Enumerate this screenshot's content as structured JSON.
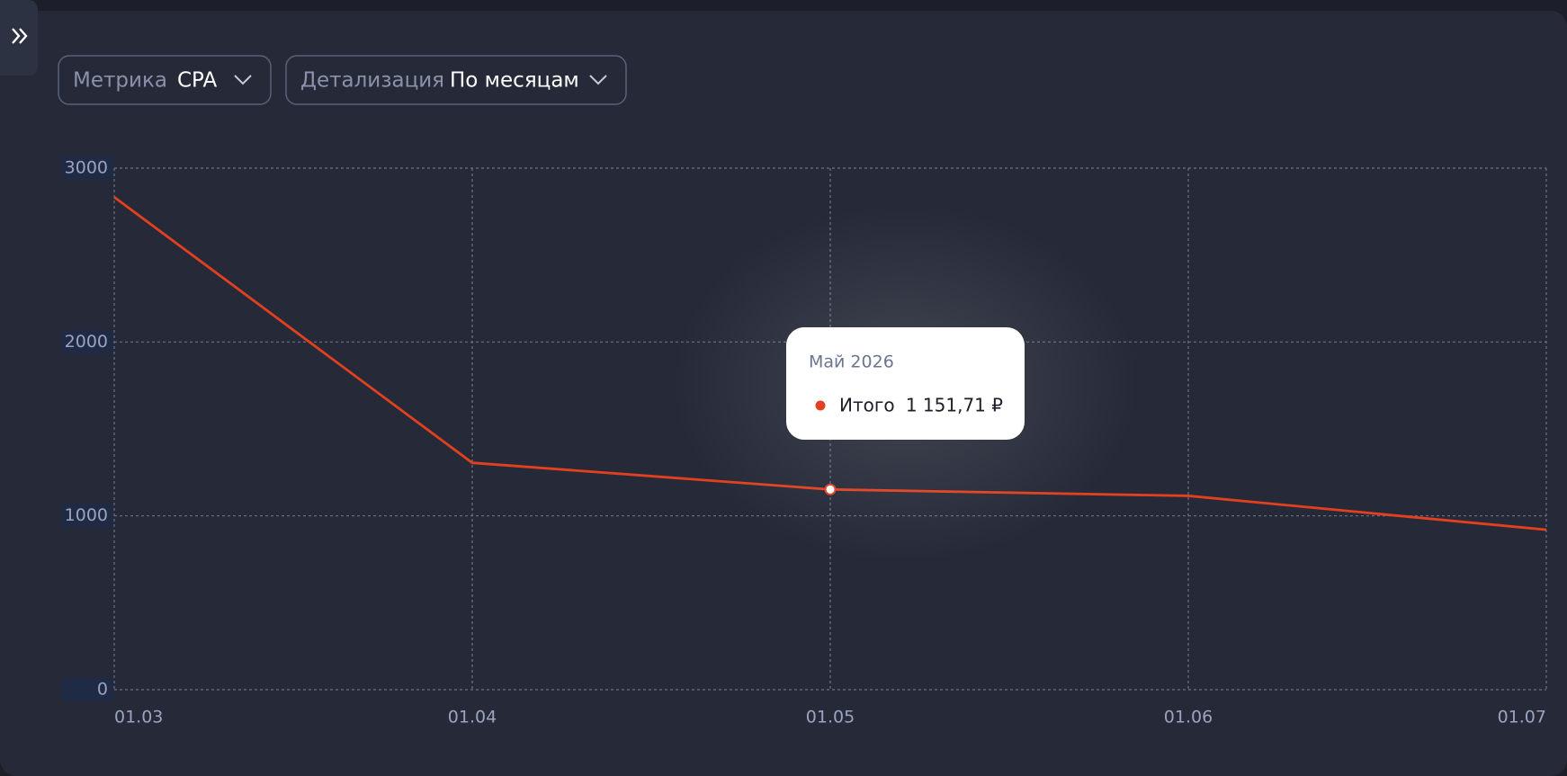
{
  "controls": [
    {
      "label": "Метрика",
      "value": "CPA"
    },
    {
      "label": "Детализация",
      "value": "По месяцам"
    }
  ],
  "chart_data": {
    "type": "line",
    "categories": [
      "01.03",
      "01.04",
      "01.05",
      "01.06",
      "01.07"
    ],
    "series": [
      {
        "name": "Итого",
        "color": "#e2401f",
        "values": [
          2833,
          1305,
          1151.71,
          1115,
          920
        ],
        "value_labels": [
          null,
          null,
          "1 151,71 ₽",
          null,
          null
        ]
      }
    ],
    "tooltip_title": "Май 2026",
    "ylim": [
      0,
      3000
    ],
    "yticks": [
      0,
      1000,
      2000,
      3000
    ],
    "grid": true
  }
}
